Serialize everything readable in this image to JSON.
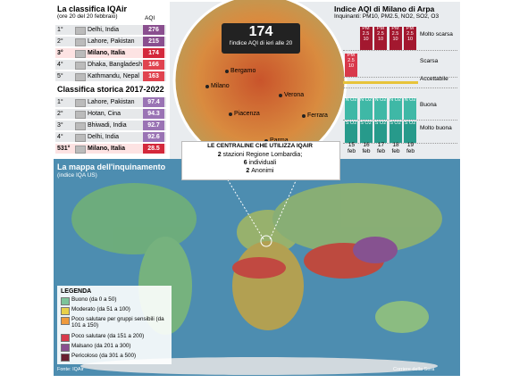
{
  "ranking": {
    "title": "La classifica IQAir",
    "subtitle": "(ore 20 del 20 febbraio)",
    "unit_header": "AQI",
    "rows": [
      {
        "rank": "1°",
        "city": "Delhi, India",
        "aqi": 276,
        "color": "#8a4f8f"
      },
      {
        "rank": "2°",
        "city": "Lahore, Pakistan",
        "aqi": 215,
        "color": "#8a4f8f"
      },
      {
        "rank": "3°",
        "city": "Milano, Italia",
        "aqi": 174,
        "color": "#d4283b"
      },
      {
        "rank": "4°",
        "city": "Dhaka, Bangladesh",
        "aqi": 166,
        "color": "#e0434f"
      },
      {
        "rank": "5°",
        "city": "Kathmandu, Nepal",
        "aqi": 163,
        "color": "#e0434f"
      }
    ]
  },
  "history": {
    "title": "Classifica storica 2017-2022",
    "rows": [
      {
        "rank": "1°",
        "city": "Lahore, Pakistan",
        "aqi": 97.4,
        "color": "#9a73b4"
      },
      {
        "rank": "2°",
        "city": "Hotan, Cina",
        "aqi": 94.3,
        "color": "#9a73b4"
      },
      {
        "rank": "3°",
        "city": "Bhiwadi, India",
        "aqi": 92.7,
        "color": "#9a73b4"
      },
      {
        "rank": "4°",
        "city": "Delhi, India",
        "aqi": 92.6,
        "color": "#9a73b4"
      },
      {
        "rank": "531°",
        "city": "Milano, Italia",
        "aqi": 28.5,
        "color": "#d4283b"
      }
    ]
  },
  "focus": {
    "value": 174,
    "caption": "l'indice AQI di ieri alle 20",
    "cities": [
      "Bergamo",
      "Milano",
      "Verona",
      "Piacenza",
      "Parma",
      "Ferrara"
    ]
  },
  "stations": {
    "title": "LE CENTRALINE CHE UTILIZZA IQAIR",
    "items": [
      {
        "count": 2,
        "label": "stazioni Regione Lombardia;"
      },
      {
        "count": 6,
        "label": "individuali"
      },
      {
        "count": 2,
        "label": "Anonimi"
      }
    ]
  },
  "arpa": {
    "title": "Indice AQI di Milano di Arpa",
    "subtitle": "Inquinanti: PM10, PM2.5, NO2, SO2, O3",
    "days": [
      "15 feb",
      "16 feb",
      "17 feb",
      "18 feb",
      "19 feb"
    ],
    "levels": [
      {
        "name": "Molto scarsa",
        "color": "#a3182f",
        "cells": [
          null,
          "PM 2.5 10",
          "PM 2.5 10",
          "PM 2.5 10",
          "PM 2.5 10"
        ]
      },
      {
        "name": "Scarsa",
        "color": "#d8394b",
        "cells": [
          "PM 2.5 10",
          null,
          null,
          null,
          null
        ]
      },
      {
        "name": "Accettabile",
        "color": "#e7c33a",
        "cells": [
          null,
          null,
          null,
          null,
          null
        ]
      },
      {
        "name": "Buona",
        "color": "#3fb8a6",
        "cells": [
          "N O2",
          "N O2",
          "N O2",
          "N O2",
          "N O2"
        ]
      },
      {
        "name": "Molto buona",
        "color": "#279a8b",
        "cells": [
          "S O2",
          "S O2",
          "S O2",
          "S O2",
          "S O2"
        ]
      }
    ]
  },
  "map": {
    "title": "La mappa dell'inquinamento",
    "subtitle": "(indice IQA US)",
    "legend_title": "LEGENDA",
    "legend": [
      {
        "label": "Buono (da 0 a 50)",
        "color": "#7cc49a"
      },
      {
        "label": "Moderato (da 51 a 100)",
        "color": "#e8d04a"
      },
      {
        "label": "Poco salutare per gruppi sensibili (da 101 a 150)",
        "color": "#ef9a3c"
      },
      {
        "label": "Poco salutare (da 151 a 200)",
        "color": "#d8394b"
      },
      {
        "label": "Malsano (da 201 a 300)",
        "color": "#8a4f8f"
      },
      {
        "label": "Pericoloso (da 301 a 500)",
        "color": "#6a2030"
      }
    ],
    "source": "Fonte: IQAir",
    "credit": "Corriere della Sera"
  }
}
